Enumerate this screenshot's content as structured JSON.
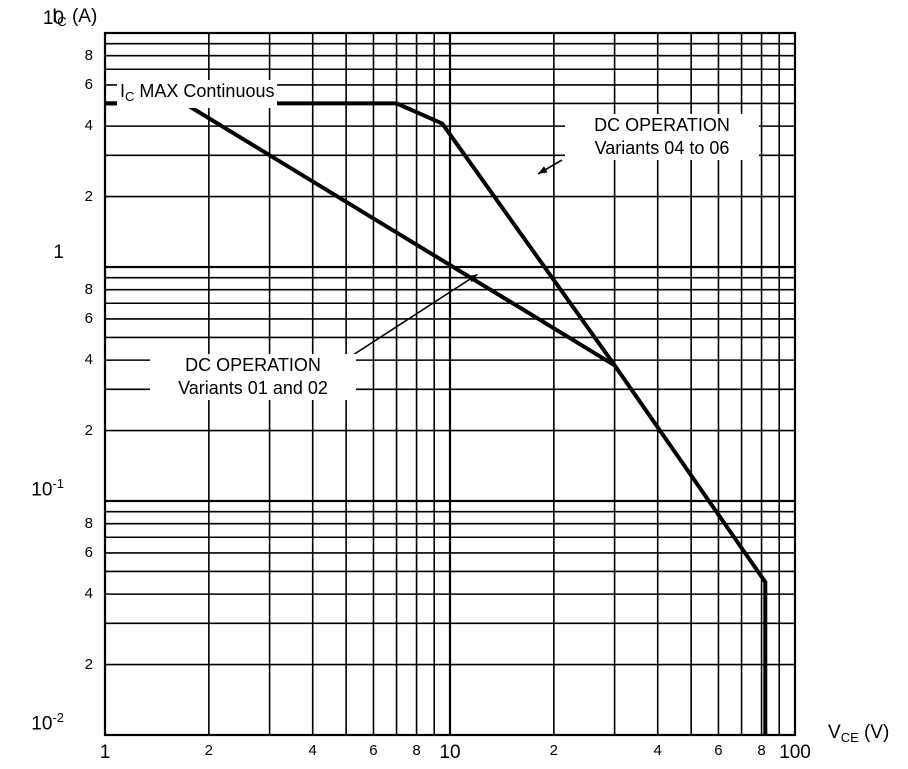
{
  "chart_data": {
    "type": "line",
    "x_scale": "log",
    "y_scale": "log",
    "xlim": [
      1,
      100
    ],
    "ylim": [
      0.01,
      10
    ],
    "grid": true,
    "ylabel": {
      "main": "I",
      "sub": "C",
      "unit": "(A)"
    },
    "xlabel": {
      "main": "V",
      "sub": "CE",
      "unit": "(V)"
    },
    "y_major_ticks": [
      {
        "value": 10,
        "label": "10",
        "exp": ""
      },
      {
        "value": 1,
        "label": "1",
        "exp": ""
      },
      {
        "value": 0.1,
        "label": "10",
        "exp": "-1"
      },
      {
        "value": 0.01,
        "label": "10",
        "exp": "-2"
      }
    ],
    "y_minor_ticks": [
      {
        "value": 8,
        "label": "8"
      },
      {
        "value": 6,
        "label": "6"
      },
      {
        "value": 4,
        "label": "4"
      },
      {
        "value": 2,
        "label": "2"
      },
      {
        "value": 0.8,
        "label": "8"
      },
      {
        "value": 0.6,
        "label": "6"
      },
      {
        "value": 0.4,
        "label": "4"
      },
      {
        "value": 0.2,
        "label": "2"
      },
      {
        "value": 0.08,
        "label": "8"
      },
      {
        "value": 0.06,
        "label": "6"
      },
      {
        "value": 0.04,
        "label": "4"
      },
      {
        "value": 0.02,
        "label": "2"
      }
    ],
    "x_major_ticks": [
      {
        "value": 1,
        "label": "1"
      },
      {
        "value": 10,
        "label": "10"
      },
      {
        "value": 100,
        "label": "100"
      }
    ],
    "x_minor_ticks": [
      {
        "value": 2,
        "label": "2"
      },
      {
        "value": 4,
        "label": "4"
      },
      {
        "value": 6,
        "label": "6"
      },
      {
        "value": 8,
        "label": "8"
      },
      {
        "value": 20,
        "label": "2"
      },
      {
        "value": 40,
        "label": "4"
      },
      {
        "value": 60,
        "label": "6"
      },
      {
        "value": 80,
        "label": "8"
      }
    ],
    "series": [
      {
        "points": [
          [
            1,
            5
          ],
          [
            7,
            5
          ],
          [
            9.5,
            4.1
          ],
          [
            30,
            0.38
          ],
          [
            82,
            0.045
          ],
          [
            82,
            0.01
          ]
        ]
      },
      {
        "points": [
          [
            1,
            5
          ],
          [
            1.7,
            5
          ],
          [
            30,
            0.38
          ]
        ]
      }
    ],
    "annotations": [
      {
        "id": "max",
        "main": "I",
        "sub": "C",
        "rest": " MAX Continuous"
      },
      {
        "id": "dc-04-06",
        "line1": "DC OPERATION",
        "line2": "Variants 04 to 06",
        "arrow_to": [
          18,
          2.5
        ]
      },
      {
        "id": "dc-01-02",
        "line1": "DC OPERATION",
        "line2": "Variants 01 and 02",
        "arrow_to": [
          12,
          0.93
        ]
      }
    ]
  }
}
